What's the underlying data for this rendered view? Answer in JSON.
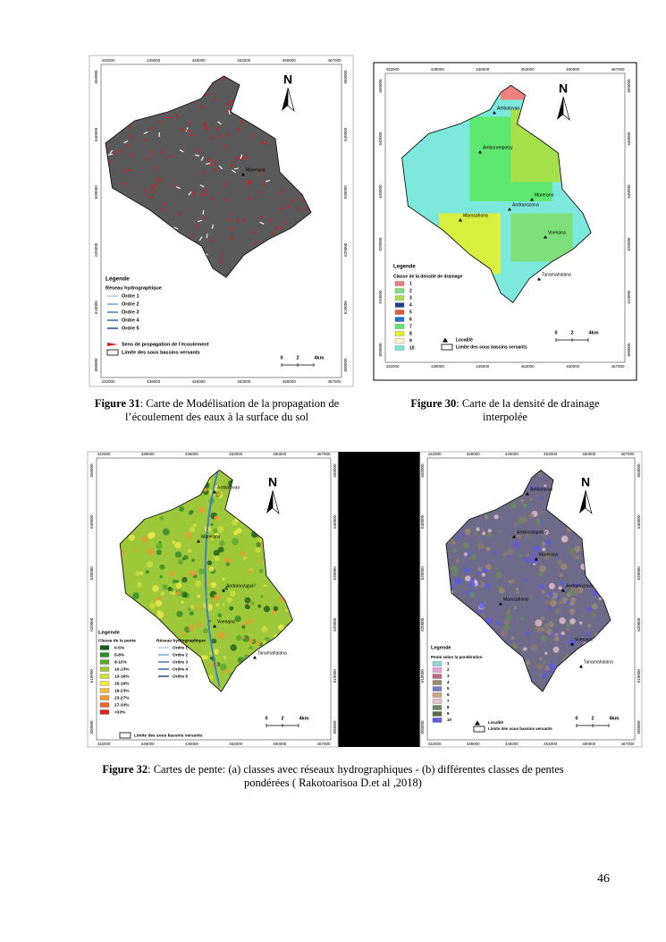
{
  "figures": [
    {
      "x_ticks": [
        "432000",
        "439000",
        "446000",
        "453000",
        "460000",
        "467000"
      ],
      "y_ticks": [
        "650000",
        "640000",
        "630000",
        "620000",
        "610000",
        "600000"
      ],
      "north": "N",
      "places": [
        "Marerano"
      ],
      "legend": {
        "title": "Légende",
        "groups": [
          {
            "heading": "Réseau hydrographique",
            "items": [
              {
                "label": "Ordre 1",
                "color": "#a9cdee",
                "kind": "line"
              },
              {
                "label": "Ordre 2",
                "color": "#6fa6dc",
                "kind": "line"
              },
              {
                "label": "Ordre 3",
                "color": "#3f7fc4",
                "kind": "line"
              },
              {
                "label": "Ordre 4",
                "color": "#2a66ad",
                "kind": "line"
              },
              {
                "label": "Ordre 5",
                "color": "#1b4f91",
                "kind": "line"
              }
            ]
          },
          {
            "items": [
              {
                "label": "Sens de propagation de l’écoulement",
                "color": "#e8141b",
                "kind": "arrow"
              },
              {
                "label": "Limite des sous bassins versants",
                "color": "#000000",
                "kind": "outline"
              }
            ]
          }
        ]
      },
      "scale": [
        "0",
        "2",
        "4km"
      ],
      "caption": {
        "label": "Figure 31",
        "text": ": Carte de Modélisation de la propagation de  l’écoulement des eaux à la surface du sol"
      }
    },
    {
      "x_ticks": [
        "432000",
        "439000",
        "446000",
        "453000",
        "460000",
        "467000"
      ],
      "y_ticks": [
        "650000",
        "640000",
        "630000",
        "620000",
        "610000",
        "600000"
      ],
      "north": "N",
      "places": [
        "Ambatovao",
        "Amborompotsy",
        "Marerano",
        "Andranozona",
        "Marosahona",
        "Voenana",
        "Tanamahalana"
      ],
      "legend": {
        "title": "Legende",
        "groups": [
          {
            "heading": "Classe de la densité de drainage",
            "items": [
              {
                "label": "1",
                "color": "#f08080",
                "kind": "box"
              },
              {
                "label": "2",
                "color": "#7ee07a",
                "kind": "box"
              },
              {
                "label": "3",
                "color": "#a6e04a",
                "kind": "box"
              },
              {
                "label": "4",
                "color": "#1f3f8f",
                "kind": "box"
              },
              {
                "label": "5",
                "color": "#e05a3a",
                "kind": "box"
              },
              {
                "label": "6",
                "color": "#1f6fd0",
                "kind": "box"
              },
              {
                "label": "7",
                "color": "#5fe870",
                "kind": "box"
              },
              {
                "label": "8",
                "color": "#e6f02a",
                "kind": "box"
              },
              {
                "label": "9",
                "color": "#fff6c8",
                "kind": "box"
              },
              {
                "label": "10",
                "color": "#7de8dc",
                "kind": "box"
              }
            ]
          },
          {
            "items": [
              {
                "label": "Localité",
                "color": "#000000",
                "kind": "triangle"
              },
              {
                "label": "Limite des sous bassins versants",
                "color": "#000000",
                "kind": "outline"
              }
            ]
          }
        ]
      },
      "scale": [
        "0",
        "2",
        "4km"
      ],
      "caption": {
        "label": "Figure 30",
        "text": ": Carte de la densité de drainage interpolée"
      }
    },
    {
      "x_ticks": [
        "432000",
        "439000",
        "446000",
        "453000",
        "460000",
        "467000"
      ],
      "y_ticks": [
        "650000",
        "640000",
        "630000",
        "620000",
        "610000",
        "600000"
      ],
      "north": "N",
      "places": [
        "Ambatovao",
        "Marerano",
        "Andranozona",
        "Voenana",
        "Tanamahalana"
      ],
      "legend": {
        "title": "Legende",
        "groups": [
          {
            "heading": "Classe de la pente",
            "items": [
              {
                "label": "0-5%",
                "color": "#1a5e1a",
                "kind": "box"
              },
              {
                "label": "5-8%",
                "color": "#2f8a2a",
                "kind": "box"
              },
              {
                "label": "8-10%",
                "color": "#5aa832",
                "kind": "box"
              },
              {
                "label": "10-13%",
                "color": "#9cc83a",
                "kind": "box"
              },
              {
                "label": "13-16%",
                "color": "#cfe03e",
                "kind": "box"
              },
              {
                "label": "16-19%",
                "color": "#f2e84a",
                "kind": "box"
              },
              {
                "label": "19-23%",
                "color": "#f4c040",
                "kind": "box"
              },
              {
                "label": "23-27%",
                "color": "#ee9a34",
                "kind": "box"
              },
              {
                "label": "27-33%",
                "color": "#e4662a",
                "kind": "box"
              },
              {
                "label": ">33%",
                "color": "#d42a1e",
                "kind": "box"
              }
            ]
          },
          {
            "heading": "Réseau hydrographique",
            "items": [
              {
                "label": "Ordre 1",
                "color": "#a9cdee",
                "kind": "line"
              },
              {
                "label": "Ordre 2",
                "color": "#6fa6dc",
                "kind": "line"
              },
              {
                "label": "Ordre 3",
                "color": "#3f7fc4",
                "kind": "line"
              },
              {
                "label": "Ordre 4",
                "color": "#2a66ad",
                "kind": "line"
              },
              {
                "label": "Ordre 5",
                "color": "#1b4f91",
                "kind": "line"
              }
            ]
          },
          {
            "items": [
              {
                "label": "Limite des sous bassins versants",
                "color": "#000000",
                "kind": "outline"
              }
            ]
          }
        ]
      },
      "scale": [
        "0",
        "2",
        "4km"
      ]
    },
    {
      "x_ticks": [
        "432000",
        "439000",
        "446000",
        "453000",
        "460000",
        "467000"
      ],
      "y_ticks": [
        "650000",
        "640000",
        "630000",
        "620000",
        "610000",
        "600000"
      ],
      "north": "N",
      "places": [
        "Ambatovao",
        "Amborompotsy",
        "Marerano",
        "Andranozona",
        "Marosahona",
        "Voenana",
        "Tanamahalana"
      ],
      "legend": {
        "title": "Legende",
        "groups": [
          {
            "heading": "Pente selon la pondération",
            "items": [
              {
                "label": "1",
                "color": "#8fd8e0",
                "kind": "box"
              },
              {
                "label": "2",
                "color": "#e8a0d8",
                "kind": "box"
              },
              {
                "label": "3",
                "color": "#c06a8a",
                "kind": "box"
              },
              {
                "label": "4",
                "color": "#9a8a70",
                "kind": "box"
              },
              {
                "label": "5",
                "color": "#7a7ad0",
                "kind": "box"
              },
              {
                "label": "6",
                "color": "#c8a880",
                "kind": "box"
              },
              {
                "label": "7",
                "color": "#e8c0c8",
                "kind": "box"
              },
              {
                "label": "8",
                "color": "#6a8a5a",
                "kind": "box"
              },
              {
                "label": "9",
                "color": "#5a6a4a",
                "kind": "box"
              },
              {
                "label": "10",
                "color": "#5a5ae8",
                "kind": "box"
              }
            ]
          },
          {
            "items": [
              {
                "label": "Localité",
                "color": "#000000",
                "kind": "triangle"
              },
              {
                "label": "Limite des sous bassins versants",
                "color": "#000000",
                "kind": "outline"
              }
            ]
          }
        ]
      },
      "scale": [
        "0",
        "2",
        "4km"
      ]
    }
  ],
  "figure32_caption": {
    "label": "Figure 32",
    "text": ": Cartes de pente: (a) classes avec réseaux hydrographiques - (b) différentes classes de pentes pondérées ( Rakotoarisoa D.et al ,2018)"
  },
  "page_number": "46"
}
